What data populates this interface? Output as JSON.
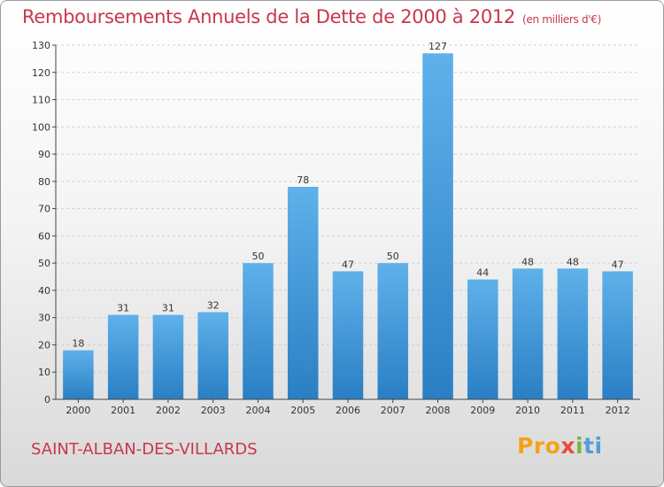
{
  "title": "Remboursements Annuels de la Dette de 2000 à 2012",
  "title_unit": "(en milliers d'€)",
  "commune": "SAINT-ALBAN-DES-VILLARDS",
  "logo": {
    "p1": "Pro",
    "p2": "x",
    "p3": "i",
    "p4": "ti"
  },
  "colors": {
    "bar_top": "#5fb1ea",
    "bar_bottom": "#2a7fc4",
    "title": "#c8374e"
  },
  "chart_data": {
    "type": "bar",
    "title": "Remboursements Annuels de la Dette de 2000 à 2012",
    "categories": [
      "2000",
      "2001",
      "2002",
      "2003",
      "2004",
      "2005",
      "2006",
      "2007",
      "2008",
      "2009",
      "2010",
      "2011",
      "2012"
    ],
    "values": [
      18,
      31,
      31,
      32,
      50,
      78,
      47,
      50,
      127,
      44,
      48,
      48,
      47
    ],
    "ylim": [
      0,
      130
    ],
    "yticks": [
      0,
      10,
      20,
      30,
      40,
      50,
      60,
      70,
      80,
      90,
      100,
      110,
      120,
      130
    ],
    "grid": true,
    "xlabel": "",
    "ylabel": ""
  }
}
